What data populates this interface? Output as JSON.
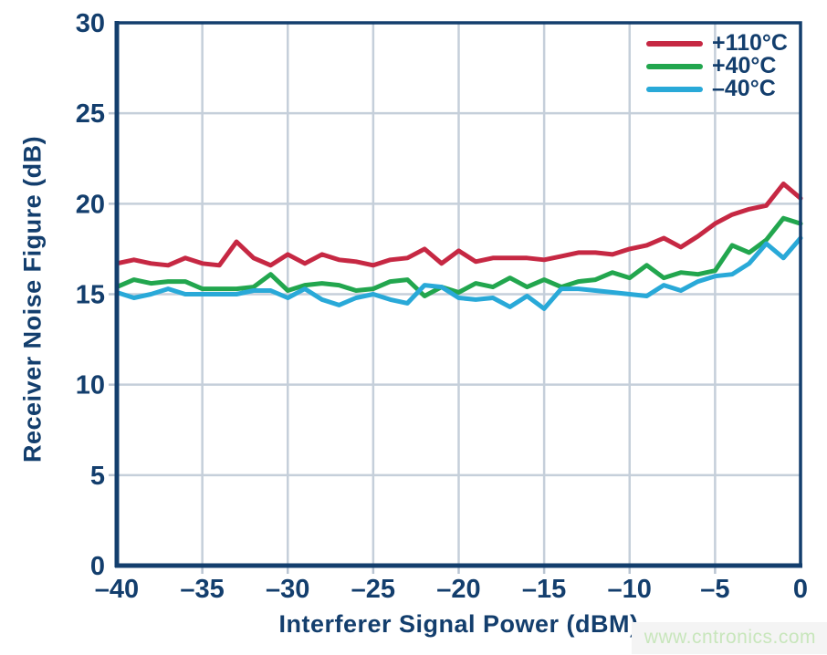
{
  "style": {
    "axis_color": "#133e6d",
    "grid_color": "#c5cfda",
    "tick_color": "#b9c4d2",
    "text_color": "#133e6d",
    "background": "#ffffff"
  },
  "watermark": {
    "text": "www.cntronics.com",
    "color": "#c8e6bc",
    "bg": "#f4f4f4"
  },
  "chart_data": {
    "type": "line",
    "title": "",
    "xlabel": "Interferer Signal Power (dBM)",
    "ylabel": "Receiver Noise Figure (dB)",
    "xlim": [
      -40,
      0
    ],
    "ylim": [
      0,
      30
    ],
    "grid": true,
    "legend_position": "top-right",
    "x_ticks": [
      -40,
      -35,
      -30,
      -25,
      -20,
      -15,
      -10,
      -5,
      0
    ],
    "x_tick_labels": [
      "–40",
      "–35",
      "–30",
      "–25",
      "–20",
      "–15",
      "–10",
      "–5",
      "0"
    ],
    "y_ticks": [
      0,
      5,
      10,
      15,
      20,
      25,
      30
    ],
    "y_tick_labels": [
      "0",
      "5",
      "10",
      "15",
      "20",
      "25",
      "30"
    ],
    "x": [
      -40,
      -39,
      -38,
      -37,
      -36,
      -35,
      -34,
      -33,
      -32,
      -31,
      -30,
      -29,
      -28,
      -27,
      -26,
      -25,
      -24,
      -23,
      -22,
      -21,
      -20,
      -19,
      -18,
      -17,
      -16,
      -15,
      -14,
      -13,
      -12,
      -11,
      -10,
      -9,
      -8,
      -7,
      -6,
      -5,
      -4,
      -3,
      -2,
      -1,
      0
    ],
    "series": [
      {
        "name": "+110°C",
        "color": "#c62843",
        "values": [
          16.7,
          16.9,
          16.7,
          16.6,
          17.0,
          16.7,
          16.6,
          17.9,
          17.0,
          16.6,
          17.2,
          16.7,
          17.2,
          16.9,
          16.8,
          16.6,
          16.9,
          17.0,
          17.5,
          16.7,
          17.4,
          16.8,
          17.0,
          17.0,
          17.0,
          16.9,
          17.1,
          17.3,
          17.3,
          17.2,
          17.5,
          17.7,
          18.1,
          17.6,
          18.2,
          18.9,
          19.4,
          19.7,
          19.9,
          21.1,
          20.3
        ]
      },
      {
        "name": "+40°C",
        "color": "#22a64e",
        "values": [
          15.4,
          15.8,
          15.6,
          15.7,
          15.7,
          15.3,
          15.3,
          15.3,
          15.4,
          16.1,
          15.2,
          15.5,
          15.6,
          15.5,
          15.2,
          15.3,
          15.7,
          15.8,
          14.9,
          15.4,
          15.1,
          15.6,
          15.4,
          15.9,
          15.4,
          15.8,
          15.4,
          15.7,
          15.8,
          16.2,
          15.9,
          16.6,
          15.9,
          16.2,
          16.1,
          16.3,
          17.7,
          17.3,
          18.0,
          19.2,
          18.9
        ]
      },
      {
        "name": "–40°C",
        "color": "#29a9d8",
        "values": [
          15.1,
          14.8,
          15.0,
          15.3,
          15.0,
          15.0,
          15.0,
          15.0,
          15.2,
          15.2,
          14.8,
          15.3,
          14.7,
          14.4,
          14.8,
          15.0,
          14.7,
          14.5,
          15.5,
          15.4,
          14.8,
          14.7,
          14.8,
          14.3,
          14.9,
          14.2,
          15.3,
          15.3,
          15.2,
          15.1,
          15.0,
          14.9,
          15.5,
          15.2,
          15.7,
          16.0,
          16.1,
          16.7,
          17.8,
          17.0,
          18.1
        ]
      }
    ]
  }
}
